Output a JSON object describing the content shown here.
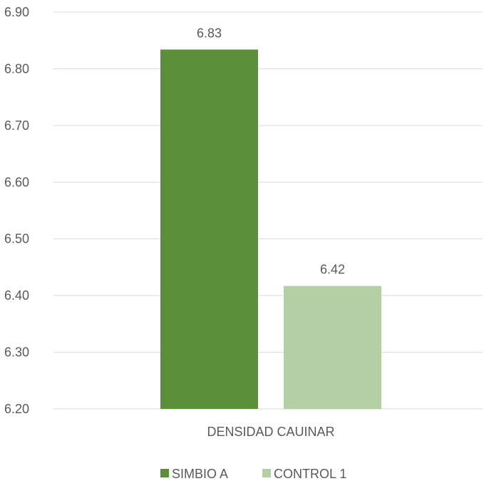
{
  "chart_data": {
    "type": "bar",
    "title": "",
    "xlabel": "",
    "ylabel": "",
    "categories": [
      "DENSIDAD CAUINAR"
    ],
    "series": [
      {
        "name": "SIMBIO A",
        "values": [
          6.834
        ],
        "label": "6.83",
        "color": "#5b8f3a"
      },
      {
        "name": "CONTROL 1",
        "values": [
          6.417
        ],
        "label": "6.42",
        "color": "#b4cfa4"
      }
    ],
    "ylim": [
      6.2,
      6.9
    ],
    "yticks": [
      "6.20",
      "6.30",
      "6.40",
      "6.50",
      "6.60",
      "6.70",
      "6.80",
      "6.90"
    ],
    "ytick_values": [
      6.2,
      6.3,
      6.4,
      6.5,
      6.6,
      6.7,
      6.8,
      6.9
    ],
    "grid": true,
    "legend_position": "bottom",
    "colors": {
      "grid": "#d9d9d9",
      "text": "#595959"
    }
  }
}
